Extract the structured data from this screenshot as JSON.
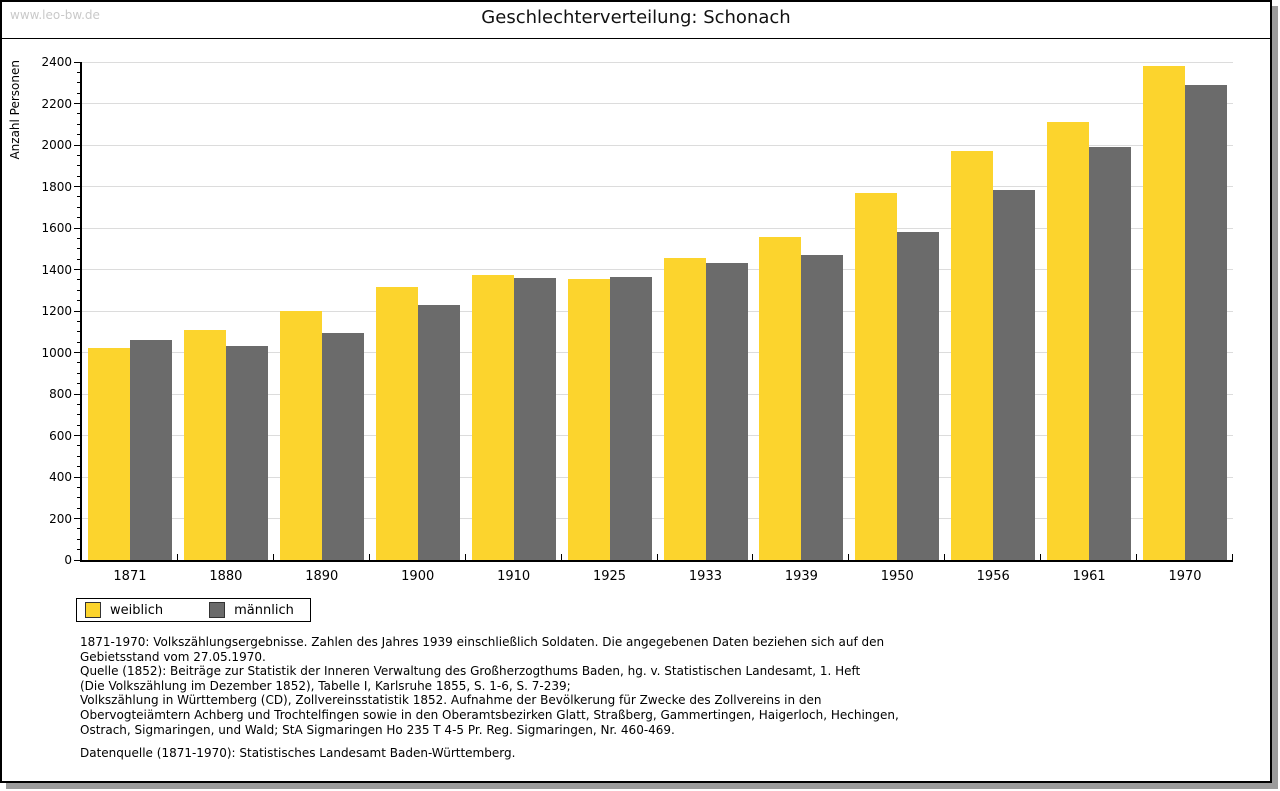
{
  "page": {
    "watermark": "www.leo-bw.de",
    "title": "Geschlechterverteilung: Schonach"
  },
  "chart_data": {
    "type": "bar",
    "title": "Geschlechterverteilung: Schonach",
    "xlabel": "",
    "ylabel": "Anzahl Personen",
    "ylim": [
      0,
      2400
    ],
    "ytick_major_interval": 200,
    "ytick_minor_interval": 50,
    "grid": true,
    "legend_position": "bottom-left",
    "categories": [
      "1871",
      "1880",
      "1890",
      "1900",
      "1910",
      "1925",
      "1933",
      "1939",
      "1950",
      "1956",
      "1961",
      "1970"
    ],
    "series": [
      {
        "name": "weiblich",
        "color": "#FCD42D",
        "values": [
          1020,
          1110,
          1200,
          1315,
          1375,
          1355,
          1455,
          1555,
          1770,
          1970,
          2110,
          2380
        ]
      },
      {
        "name": "männlich",
        "color": "#6B6B6B",
        "values": [
          1060,
          1030,
          1095,
          1230,
          1360,
          1365,
          1430,
          1470,
          1580,
          1785,
          1990,
          2290
        ]
      }
    ]
  },
  "legend": {
    "items": [
      {
        "label": "weiblich",
        "color": "#FCD42D"
      },
      {
        "label": "männlich",
        "color": "#6B6B6B"
      }
    ]
  },
  "footnotes": {
    "lines": [
      "1871-1970: Volkszählungsergebnisse. Zahlen des Jahres 1939 einschließlich Soldaten. Die angegebenen Daten beziehen sich auf den",
      "Gebietsstand vom 27.05.1970.",
      "Quelle (1852): Beiträge zur Statistik der Inneren Verwaltung des Großherzogthums Baden, hg. v. Statistischen Landesamt, 1. Heft",
      "(Die Volkszählung im Dezember 1852), Tabelle I, Karlsruhe 1855, S. 1-6, S. 7-239;",
      "Volkszählung in Württemberg (CD), Zollvereinsstatistik 1852. Aufnahme der Bevölkerung für Zwecke des Zollvereins in den",
      "Obervogteiämtern Achberg und Trochtelfingen sowie in den Oberamtsbezirken Glatt, Straßberg, Gammertingen, Haigerloch, Hechingen,",
      "Ostrach, Sigmaringen, und Wald; StA Sigmaringen Ho 235 T 4-5 Pr. Reg. Sigmaringen, Nr. 460-469."
    ],
    "datasource": "Datenquelle (1871-1970): Statistisches Landesamt Baden-Württemberg."
  }
}
